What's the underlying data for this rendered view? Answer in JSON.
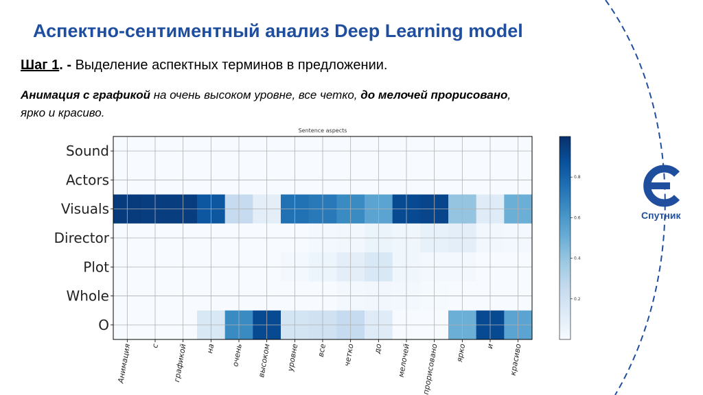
{
  "slide": {
    "title": "Аспектно-сентиментный анализ Deep Learning model",
    "step_label": "Шаг 1",
    "step_separator": ". -",
    "step_text": " Выделение аспектных терминов в предложении."
  },
  "example_sentence": {
    "bold_1": "Анимация с графикой",
    "plain_1": " на очень высоком уровне, все четко, ",
    "bold_2": "до мелочей прорисовано",
    "plain_2": ",",
    "line_2": "ярко и красиво."
  },
  "logo": {
    "name": "Спутник",
    "icon": "sputnik-logo-icon",
    "color": "#1f4e9e"
  },
  "colors": {
    "title": "#1f4e9e",
    "heatmap_low": "#f7fbff",
    "heatmap_high": "#08306b",
    "dashed_arc": "#1f4e9e"
  },
  "chart_data": {
    "type": "heatmap",
    "title": "Sentence aspects",
    "x_labels": [
      "Анимация",
      "с",
      "графикой",
      "на",
      "очень",
      "высоком",
      "уровне",
      "все",
      "четко",
      "до",
      "мелочей",
      "прорисовано",
      "ярко",
      "и",
      "красиво"
    ],
    "y_labels": [
      "Sound",
      "Actors",
      "Visuals",
      "Director",
      "Plot",
      "Whole",
      "O"
    ],
    "values": [
      [
        0.0,
        0.0,
        0.0,
        0.0,
        0.0,
        0.0,
        0.0,
        0.0,
        0.0,
        0.0,
        0.0,
        0.0,
        0.0,
        0.0,
        0.0
      ],
      [
        0.0,
        0.0,
        0.0,
        0.0,
        0.0,
        0.0,
        0.0,
        0.0,
        0.0,
        0.0,
        0.0,
        0.0,
        0.0,
        0.0,
        0.0
      ],
      [
        0.96,
        0.95,
        0.95,
        0.85,
        0.25,
        0.1,
        0.75,
        0.72,
        0.65,
        0.55,
        0.9,
        0.92,
        0.4,
        0.12,
        0.5
      ],
      [
        0.0,
        0.0,
        0.0,
        0.0,
        0.0,
        0.0,
        0.0,
        0.02,
        0.03,
        0.06,
        0.04,
        0.08,
        0.1,
        0.03,
        0.02
      ],
      [
        0.0,
        0.0,
        0.0,
        0.0,
        0.0,
        0.0,
        0.02,
        0.05,
        0.1,
        0.15,
        0.04,
        0.02,
        0.02,
        0.0,
        0.0
      ],
      [
        0.0,
        0.0,
        0.0,
        0.0,
        0.0,
        0.0,
        0.0,
        0.0,
        0.02,
        0.03,
        0.02,
        0.01,
        0.0,
        0.0,
        0.0
      ],
      [
        0.0,
        0.0,
        0.0,
        0.15,
        0.65,
        0.9,
        0.18,
        0.2,
        0.25,
        0.12,
        0.0,
        0.0,
        0.5,
        0.9,
        0.55
      ]
    ],
    "colorbar_ticks": [
      "0.2",
      "0.4",
      "0.6",
      "0.8"
    ],
    "colorbar_tick_values": [
      0.2,
      0.4,
      0.6,
      0.8
    ],
    "vmin": 0,
    "vmax": 1,
    "colormap": "Blues",
    "grid": true
  }
}
